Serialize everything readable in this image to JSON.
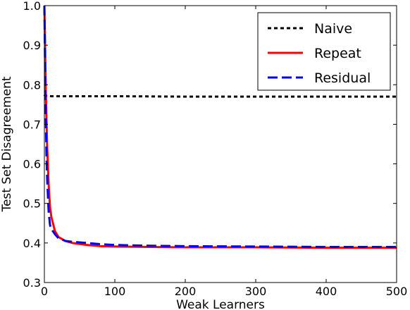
{
  "chart_data": {
    "type": "line",
    "title": "",
    "xlabel": "Weak Learners",
    "ylabel": "Test Set Disagreement",
    "xlim": [
      0,
      500
    ],
    "ylim": [
      0.3,
      1.0
    ],
    "xticks": [
      0,
      100,
      200,
      300,
      400,
      500
    ],
    "yticks": [
      0.3,
      0.4,
      0.5,
      0.6,
      0.7,
      0.8,
      0.9,
      1.0
    ],
    "xtick_labels": [
      "0",
      "100",
      "200",
      "300",
      "400",
      "500"
    ],
    "ytick_labels": [
      "0.3",
      "0.4",
      "0.5",
      "0.6",
      "0.7",
      "0.8",
      "0.9",
      "1.0"
    ],
    "grid": false,
    "legend_position": "top-right",
    "series": [
      {
        "name": "Naive",
        "color": "#000000",
        "dash": "dotted",
        "x": [
          0,
          1,
          3,
          10,
          50,
          100,
          200,
          300,
          400,
          500
        ],
        "y": [
          0.775,
          0.772,
          0.772,
          0.771,
          0.771,
          0.771,
          0.77,
          0.77,
          0.77,
          0.77
        ]
      },
      {
        "name": "Repeat",
        "color": "#ff0000",
        "dash": "solid",
        "x": [
          0,
          1,
          2,
          4,
          6,
          8,
          10,
          15,
          20,
          30,
          40,
          60,
          80,
          100,
          150,
          200,
          300,
          400,
          500
        ],
        "y": [
          1.0,
          0.9,
          0.78,
          0.64,
          0.55,
          0.49,
          0.465,
          0.43,
          0.415,
          0.405,
          0.4,
          0.395,
          0.392,
          0.391,
          0.39,
          0.389,
          0.389,
          0.388,
          0.388
        ]
      },
      {
        "name": "Residual",
        "color": "#0000ff",
        "dash": "dashed",
        "x": [
          0,
          1,
          2,
          3,
          4,
          5,
          6,
          8,
          10,
          15,
          20,
          30,
          40,
          60,
          80,
          100,
          150,
          200,
          300,
          400,
          500
        ],
        "y": [
          1.0,
          0.85,
          0.72,
          0.62,
          0.56,
          0.52,
          0.48,
          0.445,
          0.435,
          0.422,
          0.412,
          0.405,
          0.403,
          0.4,
          0.397,
          0.395,
          0.393,
          0.392,
          0.391,
          0.39,
          0.39
        ]
      }
    ]
  }
}
